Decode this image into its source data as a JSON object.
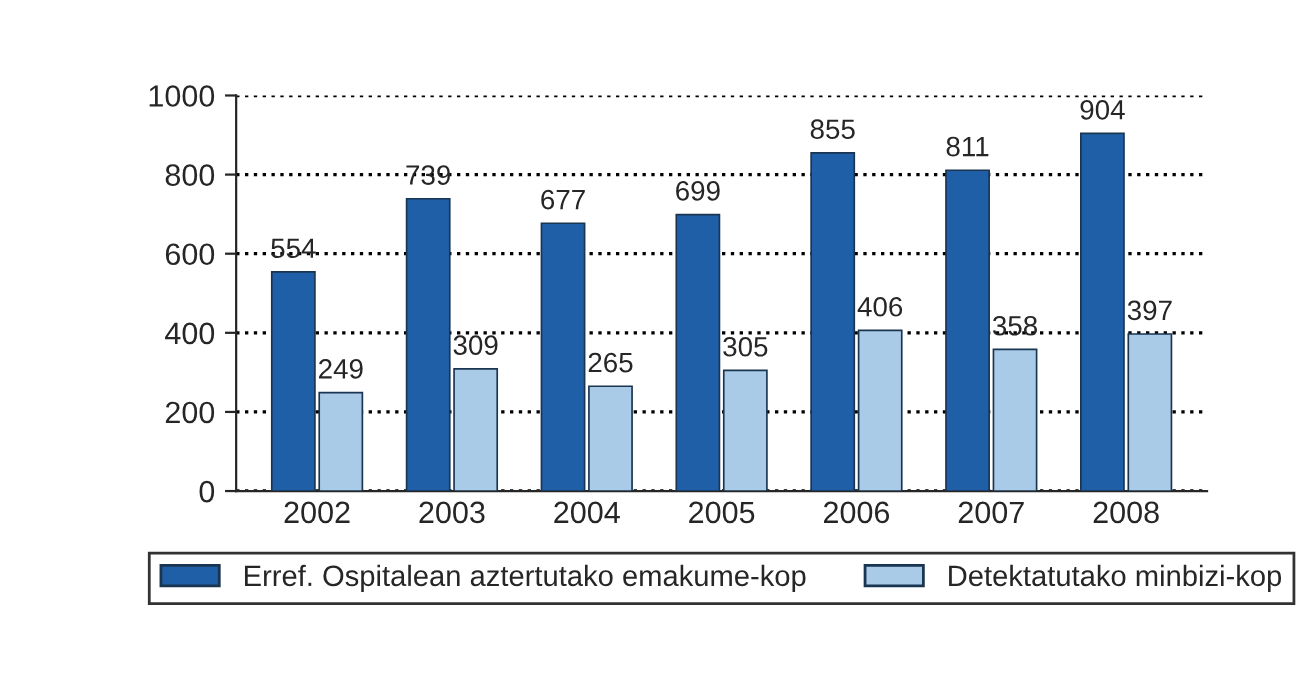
{
  "chart_data": {
    "type": "bar",
    "categories": [
      "2002",
      "2003",
      "2004",
      "2005",
      "2006",
      "2007",
      "2008"
    ],
    "series": [
      {
        "name": "Erref. Ospitalean aztertutako emakume-kop",
        "color": "#1f5fa8",
        "values": [
          554,
          739,
          677,
          699,
          855,
          811,
          904
        ]
      },
      {
        "name": "Detektatutako minbizi-kop",
        "color": "#a9cbe8",
        "values": [
          249,
          309,
          265,
          305,
          406,
          358,
          397
        ]
      }
    ],
    "ylim": [
      0,
      1000
    ],
    "yticks": [
      0,
      200,
      400,
      600,
      800,
      1000
    ],
    "grid": "y",
    "legend": "bottom",
    "data_labels": true
  }
}
